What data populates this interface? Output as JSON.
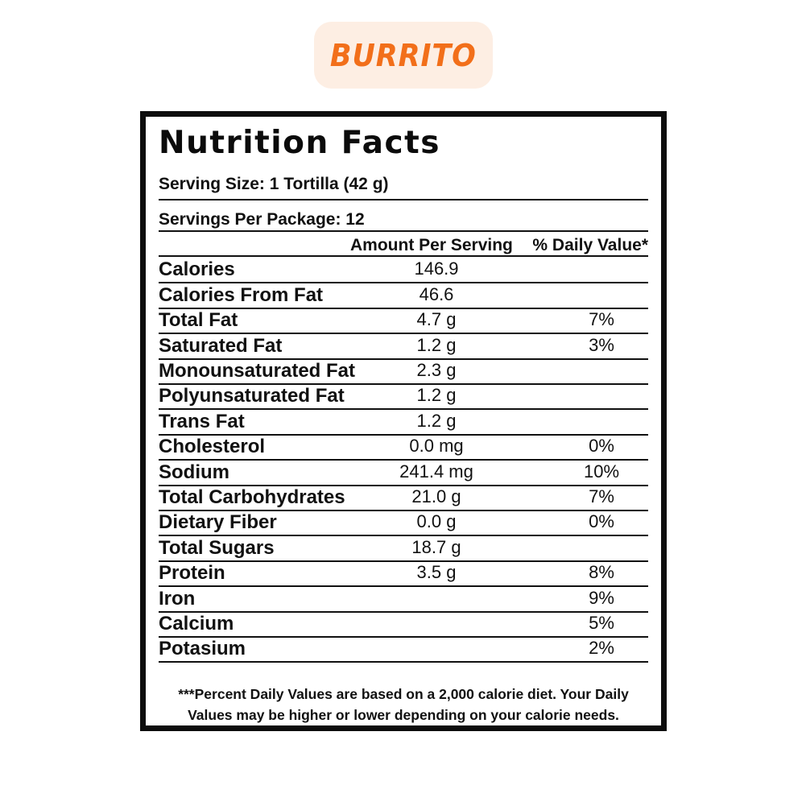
{
  "badge": {
    "label": "BURRITO",
    "bg_color": "#fdeee3",
    "text_color": "#f26f1a"
  },
  "label": {
    "title": "Nutrition Facts",
    "serving_size": "Serving Size: 1 Tortilla (42 g)",
    "servings_per_package": "Servings Per Package: 12",
    "header_amount": "Amount Per Serving",
    "header_daily_value": "% Daily Value*",
    "rows": [
      {
        "name": "Calories",
        "amount": "146.9",
        "dv": ""
      },
      {
        "name": "Calories From Fat",
        "amount": "46.6",
        "dv": ""
      },
      {
        "name": "Total Fat",
        "amount": "4.7 g",
        "dv": "7%"
      },
      {
        "name": "Saturated Fat",
        "amount": "1.2 g",
        "dv": "3%"
      },
      {
        "name": "Monounsaturated Fat",
        "amount": "2.3 g",
        "dv": ""
      },
      {
        "name": "Polyunsaturated Fat",
        "amount": "1.2 g",
        "dv": ""
      },
      {
        "name": "Trans Fat",
        "amount": "1.2 g",
        "dv": ""
      },
      {
        "name": "Cholesterol",
        "amount": "0.0 mg",
        "dv": "0%"
      },
      {
        "name": "Sodium",
        "amount": "241.4 mg",
        "dv": "10%"
      },
      {
        "name": "Total Carbohydrates",
        "amount": "21.0 g",
        "dv": "7%"
      },
      {
        "name": "Dietary Fiber",
        "amount": "0.0 g",
        "dv": "0%"
      },
      {
        "name": "Total Sugars",
        "amount": "18.7 g",
        "dv": ""
      },
      {
        "name": "Protein",
        "amount": "3.5 g",
        "dv": "8%"
      },
      {
        "name": "Iron",
        "amount": "",
        "dv": "9%"
      },
      {
        "name": "Calcium",
        "amount": "",
        "dv": "5%"
      },
      {
        "name": "Potasium",
        "amount": "",
        "dv": "2%"
      }
    ],
    "footnote_line1": "***Percent Daily Values are based on a 2,000 calorie diet. Your Daily",
    "footnote_line2": "Values may be higher or lower depending on your calorie needs."
  }
}
